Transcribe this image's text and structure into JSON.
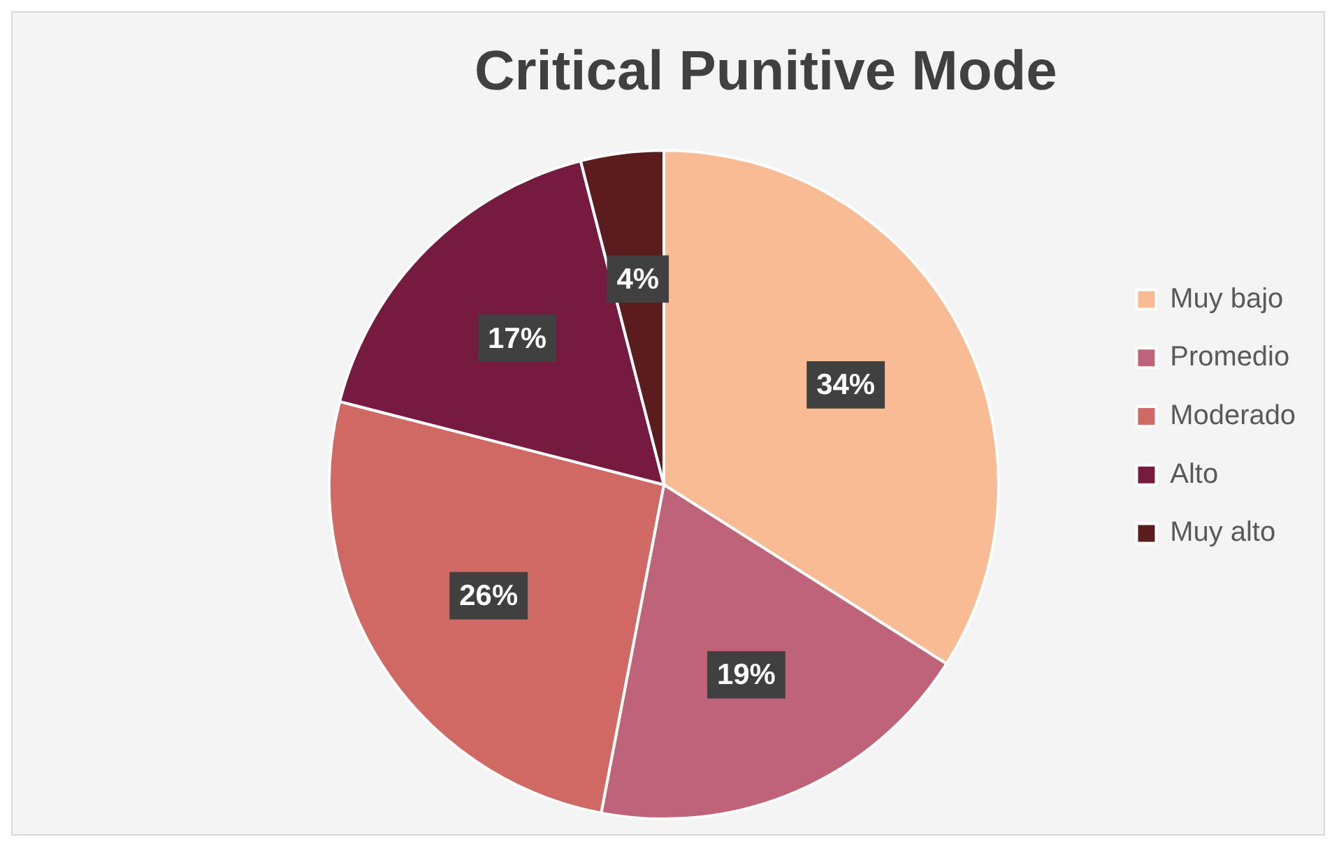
{
  "chart_data": {
    "type": "pie",
    "title": "Critical Punitive Mode",
    "categories": [
      "Muy bajo",
      "Promedio",
      "Moderado",
      "Alto",
      "Muy alto"
    ],
    "values": [
      34,
      19,
      26,
      17,
      4
    ],
    "value_labels": [
      "34%",
      "19%",
      "26%",
      "17%",
      "4%"
    ],
    "colors": [
      "#f8bb94",
      "#bf6478",
      "#d06864",
      "#761a40",
      "#5a1c1c"
    ],
    "legend": "right"
  }
}
